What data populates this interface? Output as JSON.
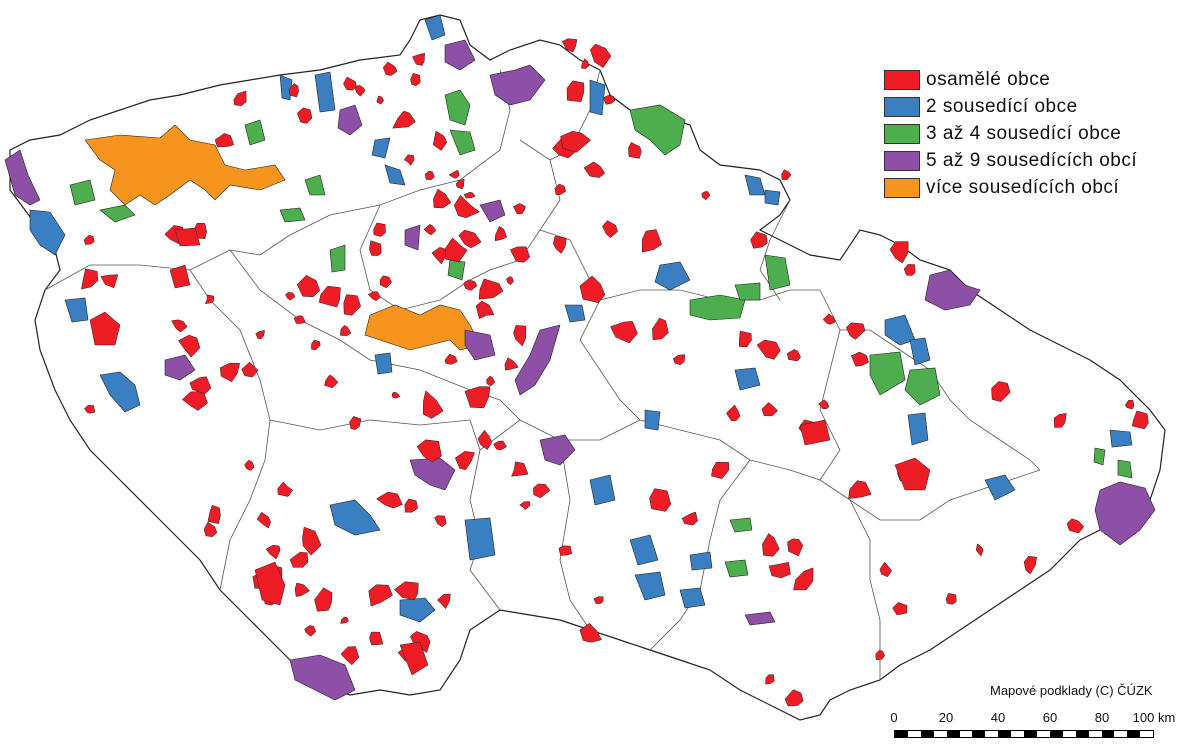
{
  "legend": {
    "items": [
      {
        "label": "osamělé obce",
        "color": "#ee1c25",
        "key": "red"
      },
      {
        "label": "2 sousedící obce",
        "color": "#3a7fc1",
        "key": "blue"
      },
      {
        "label": "3 až 4 sousedící obce",
        "color": "#4cae4c",
        "key": "green"
      },
      {
        "label": "5 až 9 sousedících obcí",
        "color": "#8e4fa6",
        "key": "purple"
      },
      {
        "label": "více sousedících obcí",
        "color": "#f7941d",
        "key": "orange"
      }
    ]
  },
  "credit": "Mapové podklady (C) ČÚZK",
  "scale": {
    "labels": [
      "0",
      "20",
      "40",
      "60",
      "80",
      "100 km"
    ]
  },
  "map": {
    "border_color": "#222222",
    "region_line_color": "#555555"
  }
}
